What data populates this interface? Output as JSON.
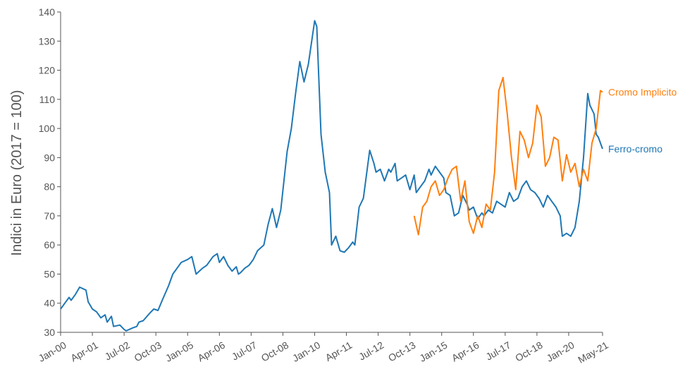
{
  "chart_data": {
    "type": "line",
    "title": "",
    "xlabel": "",
    "ylabel": "Indici in Euro (2017 = 100)",
    "ylim": [
      30,
      140
    ],
    "yticks": [
      30,
      40,
      50,
      60,
      70,
      80,
      90,
      100,
      110,
      120,
      130,
      140
    ],
    "xlim": [
      "2000-01",
      "2021-05"
    ],
    "xticks": [
      {
        "date": "2000-01",
        "label": "Jan-00"
      },
      {
        "date": "2001-04",
        "label": "Apr-01"
      },
      {
        "date": "2002-07",
        "label": "Jul-02"
      },
      {
        "date": "2003-10",
        "label": "Oct-03"
      },
      {
        "date": "2005-01",
        "label": "Jan-05"
      },
      {
        "date": "2006-04",
        "label": "Apr-06"
      },
      {
        "date": "2007-07",
        "label": "Jul-07"
      },
      {
        "date": "2008-10",
        "label": "Oct-08"
      },
      {
        "date": "2010-01",
        "label": "Jan-10"
      },
      {
        "date": "2011-04",
        "label": "Apr-11"
      },
      {
        "date": "2012-07",
        "label": "Jul-12"
      },
      {
        "date": "2013-10",
        "label": "Oct-13"
      },
      {
        "date": "2015-01",
        "label": "Jan-15"
      },
      {
        "date": "2016-04",
        "label": "Apr-16"
      },
      {
        "date": "2017-07",
        "label": "Jul-17"
      },
      {
        "date": "2018-10",
        "label": "Oct-18"
      },
      {
        "date": "2020-01",
        "label": "Jan-20"
      },
      {
        "date": "2021-05",
        "label": "May-21"
      }
    ],
    "grid": false,
    "legend": "inline labels at line ends",
    "series": [
      {
        "name": "Ferro-cromo",
        "color": "#1f77b4",
        "points": [
          [
            "2000-01",
            38
          ],
          [
            "2000-03",
            40
          ],
          [
            "2000-05",
            42
          ],
          [
            "2000-06",
            41
          ],
          [
            "2000-08",
            43
          ],
          [
            "2000-10",
            45.5
          ],
          [
            "2001-01",
            44.5
          ],
          [
            "2001-02",
            40.5
          ],
          [
            "2001-04",
            38
          ],
          [
            "2001-06",
            37
          ],
          [
            "2001-08",
            35
          ],
          [
            "2001-10",
            36
          ],
          [
            "2001-11",
            33.5
          ],
          [
            "2002-01",
            35.5
          ],
          [
            "2002-02",
            32
          ],
          [
            "2002-05",
            32.5
          ],
          [
            "2002-07",
            31
          ],
          [
            "2002-08",
            30.5
          ],
          [
            "2002-11",
            31.5
          ],
          [
            "2003-01",
            32
          ],
          [
            "2003-02",
            33.5
          ],
          [
            "2003-04",
            34
          ],
          [
            "2003-07",
            36.5
          ],
          [
            "2003-09",
            38
          ],
          [
            "2003-11",
            37.5
          ],
          [
            "2004-01",
            41
          ],
          [
            "2004-04",
            46
          ],
          [
            "2004-06",
            50
          ],
          [
            "2004-08",
            52
          ],
          [
            "2004-10",
            54
          ],
          [
            "2005-01",
            55
          ],
          [
            "2005-03",
            56
          ],
          [
            "2005-05",
            50
          ],
          [
            "2005-08",
            52
          ],
          [
            "2005-10",
            53
          ],
          [
            "2006-01",
            56
          ],
          [
            "2006-03",
            57
          ],
          [
            "2006-04",
            54
          ],
          [
            "2006-06",
            56
          ],
          [
            "2006-08",
            53
          ],
          [
            "2006-10",
            51
          ],
          [
            "2006-12",
            52.5
          ],
          [
            "2007-01",
            50
          ],
          [
            "2007-02",
            50.5
          ],
          [
            "2007-04",
            52
          ],
          [
            "2007-06",
            53
          ],
          [
            "2007-08",
            55
          ],
          [
            "2007-10",
            58
          ],
          [
            "2008-01",
            60
          ],
          [
            "2008-03",
            67
          ],
          [
            "2008-05",
            72.5
          ],
          [
            "2008-07",
            66
          ],
          [
            "2008-09",
            72
          ],
          [
            "2008-12",
            92
          ],
          [
            "2009-02",
            100
          ],
          [
            "2009-04",
            112
          ],
          [
            "2009-06",
            123
          ],
          [
            "2009-08",
            116
          ],
          [
            "2009-10",
            122
          ],
          [
            "2010-01",
            137
          ],
          [
            "2010-02",
            135
          ],
          [
            "2010-04",
            98
          ],
          [
            "2010-06",
            85
          ],
          [
            "2010-08",
            78
          ],
          [
            "2010-09",
            60
          ],
          [
            "2010-11",
            63
          ],
          [
            "2011-01",
            58
          ],
          [
            "2011-03",
            57.5
          ],
          [
            "2011-05",
            59
          ],
          [
            "2011-07",
            61
          ],
          [
            "2011-08",
            60
          ],
          [
            "2011-10",
            73
          ],
          [
            "2011-12",
            76
          ],
          [
            "2012-03",
            92.5
          ],
          [
            "2012-05",
            88
          ],
          [
            "2012-06",
            85
          ],
          [
            "2012-08",
            86
          ],
          [
            "2012-10",
            82
          ],
          [
            "2012-12",
            86
          ],
          [
            "2013-01",
            85
          ],
          [
            "2013-03",
            88
          ],
          [
            "2013-04",
            82
          ],
          [
            "2013-06",
            83
          ],
          [
            "2013-08",
            84
          ],
          [
            "2013-10",
            79
          ],
          [
            "2013-12",
            84
          ],
          [
            "2014-01",
            78
          ],
          [
            "2014-03",
            80
          ],
          [
            "2014-05",
            82
          ],
          [
            "2014-07",
            86
          ],
          [
            "2014-08",
            84
          ],
          [
            "2014-10",
            87
          ],
          [
            "2014-12",
            85
          ],
          [
            "2015-02",
            83
          ],
          [
            "2015-03",
            78
          ],
          [
            "2015-05",
            77
          ],
          [
            "2015-07",
            70
          ],
          [
            "2015-09",
            71
          ],
          [
            "2015-11",
            77
          ],
          [
            "2016-01",
            74
          ],
          [
            "2016-02",
            72
          ],
          [
            "2016-04",
            73
          ],
          [
            "2016-06",
            69
          ],
          [
            "2016-08",
            71
          ],
          [
            "2016-09",
            70
          ],
          [
            "2016-11",
            72
          ],
          [
            "2017-01",
            71
          ],
          [
            "2017-03",
            75
          ],
          [
            "2017-05",
            74
          ],
          [
            "2017-07",
            73
          ],
          [
            "2017-09",
            78
          ],
          [
            "2017-11",
            75
          ],
          [
            "2018-01",
            76
          ],
          [
            "2018-03",
            80
          ],
          [
            "2018-05",
            82
          ],
          [
            "2018-07",
            79
          ],
          [
            "2018-09",
            78
          ],
          [
            "2018-11",
            76
          ],
          [
            "2019-01",
            73
          ],
          [
            "2019-03",
            77
          ],
          [
            "2019-05",
            75
          ],
          [
            "2019-07",
            73
          ],
          [
            "2019-09",
            70
          ],
          [
            "2019-10",
            63
          ],
          [
            "2019-12",
            64
          ],
          [
            "2020-02",
            63
          ],
          [
            "2020-04",
            66
          ],
          [
            "2020-06",
            75
          ],
          [
            "2020-08",
            90
          ],
          [
            "2020-10",
            112
          ],
          [
            "2020-11",
            108
          ],
          [
            "2021-01",
            105
          ],
          [
            "2021-02",
            98
          ],
          [
            "2021-03",
            97
          ],
          [
            "2021-05",
            93
          ]
        ]
      },
      {
        "name": "Cromo Implicito",
        "color": "#ff7f0e",
        "points": [
          [
            "2013-12",
            70
          ],
          [
            "2014-02",
            63.5
          ],
          [
            "2014-04",
            73
          ],
          [
            "2014-06",
            75
          ],
          [
            "2014-08",
            80
          ],
          [
            "2014-10",
            82
          ],
          [
            "2014-12",
            77
          ],
          [
            "2015-02",
            79
          ],
          [
            "2015-04",
            83
          ],
          [
            "2015-06",
            86
          ],
          [
            "2015-08",
            87
          ],
          [
            "2015-10",
            75
          ],
          [
            "2015-12",
            82
          ],
          [
            "2016-02",
            68
          ],
          [
            "2016-04",
            64
          ],
          [
            "2016-06",
            70
          ],
          [
            "2016-08",
            66
          ],
          [
            "2016-10",
            74
          ],
          [
            "2016-12",
            72
          ],
          [
            "2017-02",
            85
          ],
          [
            "2017-04",
            113
          ],
          [
            "2017-06",
            117.5
          ],
          [
            "2017-08",
            105
          ],
          [
            "2017-10",
            90
          ],
          [
            "2017-12",
            79
          ],
          [
            "2018-02",
            99
          ],
          [
            "2018-04",
            96
          ],
          [
            "2018-06",
            90
          ],
          [
            "2018-08",
            95
          ],
          [
            "2018-10",
            108
          ],
          [
            "2018-12",
            104
          ],
          [
            "2019-02",
            87
          ],
          [
            "2019-04",
            90
          ],
          [
            "2019-06",
            97
          ],
          [
            "2019-08",
            96
          ],
          [
            "2019-10",
            82
          ],
          [
            "2019-12",
            91
          ],
          [
            "2020-02",
            85
          ],
          [
            "2020-04",
            88
          ],
          [
            "2020-06",
            80
          ],
          [
            "2020-08",
            86
          ],
          [
            "2020-10",
            82
          ],
          [
            "2020-12",
            95
          ],
          [
            "2021-02",
            100
          ],
          [
            "2021-04",
            113
          ],
          [
            "2021-05",
            112.5
          ]
        ]
      }
    ]
  }
}
